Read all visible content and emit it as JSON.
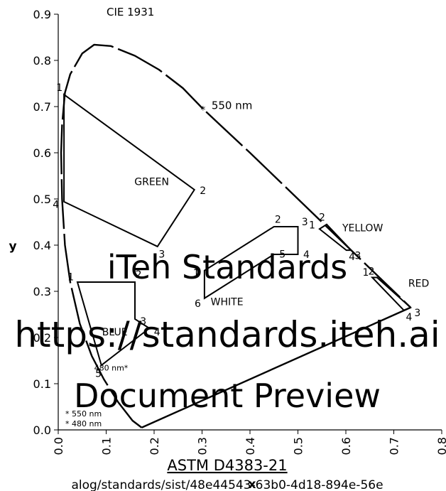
{
  "chart_data": {
    "type": "diagram",
    "title": "CIE 1931",
    "xlabel": "x",
    "ylabel": "y",
    "xlim": [
      0.0,
      0.8
    ],
    "ylim": [
      0.0,
      0.9
    ],
    "x_ticks": [
      "0.0",
      "0.1",
      "0.2",
      "0.3",
      "0.4",
      "0.5",
      "0.6",
      "0.7",
      "0.8"
    ],
    "y_ticks": [
      "0.0",
      "0.1",
      "0.2",
      "0.3",
      "0.4",
      "0.5",
      "0.6",
      "0.7",
      "0.8",
      "0.9"
    ],
    "locus": [
      [
        0.174,
        0.005
      ],
      [
        0.155,
        0.02
      ],
      [
        0.125,
        0.06
      ],
      [
        0.095,
        0.11
      ],
      [
        0.07,
        0.16
      ],
      [
        0.045,
        0.23
      ],
      [
        0.025,
        0.32
      ],
      [
        0.014,
        0.4
      ],
      [
        0.008,
        0.5
      ],
      [
        0.006,
        0.6
      ],
      [
        0.008,
        0.66
      ],
      [
        0.014,
        0.73
      ],
      [
        0.025,
        0.77
      ],
      [
        0.05,
        0.815
      ],
      [
        0.075,
        0.834
      ],
      [
        0.11,
        0.831
      ],
      [
        0.16,
        0.81
      ],
      [
        0.21,
        0.78
      ],
      [
        0.26,
        0.74
      ],
      [
        0.302,
        0.695
      ],
      [
        0.34,
        0.658
      ],
      [
        0.4,
        0.6
      ],
      [
        0.45,
        0.55
      ],
      [
        0.5,
        0.5
      ],
      [
        0.55,
        0.45
      ],
      [
        0.6,
        0.4
      ],
      [
        0.65,
        0.35
      ],
      [
        0.7,
        0.3
      ],
      [
        0.735,
        0.265
      ]
    ],
    "purple_line": [
      [
        0.735,
        0.265
      ],
      [
        0.174,
        0.005
      ]
    ],
    "regions": [
      {
        "name": "GREEN",
        "label_x": 0.195,
        "label_y": 0.53,
        "points": [
          [
            0.012,
            0.726
          ],
          [
            0.284,
            0.52
          ],
          [
            0.207,
            0.397
          ],
          [
            0.012,
            0.494
          ]
        ],
        "point_labels": [
          "1",
          "2",
          "3",
          "4"
        ]
      },
      {
        "name": "BLUE",
        "label_x": 0.118,
        "label_y": 0.205,
        "points": [
          [
            0.04,
            0.32
          ],
          [
            0.16,
            0.32
          ],
          [
            0.16,
            0.24
          ],
          [
            0.19,
            0.22
          ],
          [
            0.09,
            0.14
          ]
        ],
        "point_labels": [
          "1",
          "2",
          "3",
          "4",
          "5"
        ]
      },
      {
        "name": "WHITE",
        "label_x": 0.352,
        "label_y": 0.27,
        "points": [
          [
            0.305,
            0.345
          ],
          [
            0.45,
            0.44
          ],
          [
            0.5,
            0.44
          ],
          [
            0.5,
            0.38
          ],
          [
            0.45,
            0.38
          ],
          [
            0.305,
            0.285
          ]
        ],
        "point_labels": [
          "1",
          "2",
          "3",
          "4",
          "5",
          "6"
        ]
      },
      {
        "name": "YELLOW",
        "label_x": 0.635,
        "label_y": 0.43,
        "points": [
          [
            0.545,
            0.435
          ],
          [
            0.56,
            0.445
          ],
          [
            0.611,
            0.389
          ],
          [
            0.601,
            0.389
          ]
        ],
        "point_labels": [
          "1",
          "2",
          "3",
          "4"
        ]
      },
      {
        "name": "RED",
        "label_x": 0.752,
        "label_y": 0.31,
        "points": [
          [
            0.655,
            0.33
          ],
          [
            0.665,
            0.33
          ],
          [
            0.735,
            0.265
          ],
          [
            0.721,
            0.259
          ]
        ],
        "point_labels": [
          "1",
          "2",
          "3",
          "4"
        ]
      }
    ],
    "annotations": [
      {
        "text": "550 nm",
        "x": 0.302,
        "y": 0.695,
        "marker": "*"
      },
      {
        "text": "480 nm*",
        "x": 0.075,
        "y": 0.135
      }
    ],
    "legend_notes": [
      "* 550 nm",
      "* 480 nm"
    ],
    "legend_position": "bottom-left",
    "grid": false
  },
  "watermark": {
    "lines": [
      "iTeh Standards",
      "https://standards.iteh.ai",
      "Document Preview",
      "ASTM D4383-21",
      "alog/standards/sist/48e44543-63b0-4d18-894e-56e"
    ],
    "color": "#f2bcbc"
  }
}
